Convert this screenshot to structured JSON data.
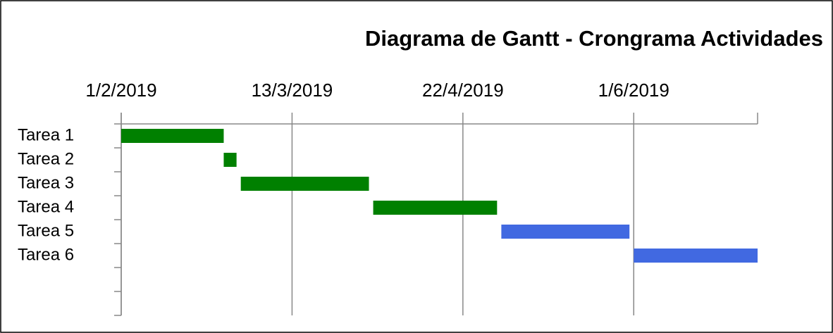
{
  "chart_data": {
    "type": "gantt",
    "title": "Diagrama de Gantt - Crongrama Actividades",
    "categories": [
      "Tarea 1",
      "Tarea 2",
      "Tarea 3",
      "Tarea 4",
      "Tarea 5",
      "Tarea 6",
      null,
      null
    ],
    "start": [
      "2019-02-01",
      "2019-02-25",
      "2019-03-01",
      "2019-04-01",
      "2019-05-01",
      "2019-06-01",
      null,
      null
    ],
    "end": [
      "2019-02-25",
      "2019-02-28",
      "2019-03-31",
      "2019-04-30",
      "2019-05-31",
      "2019-06-30",
      null,
      null
    ],
    "colors": [
      "#008000",
      "#008000",
      "#008000",
      "#008000",
      "#4169e1",
      "#4169e1",
      null,
      null
    ],
    "xlim": [
      "2019-02-01",
      "2019-06-30"
    ],
    "xticks": [
      {
        "value": "2019-02-01",
        "label": "1/2/2019"
      },
      {
        "value": "2019-03-13",
        "label": "13/3/2019"
      },
      {
        "value": "2019-04-22",
        "label": "22/4/2019"
      },
      {
        "value": "2019-06-01",
        "label": "1/6/2019"
      }
    ],
    "grid": true
  }
}
